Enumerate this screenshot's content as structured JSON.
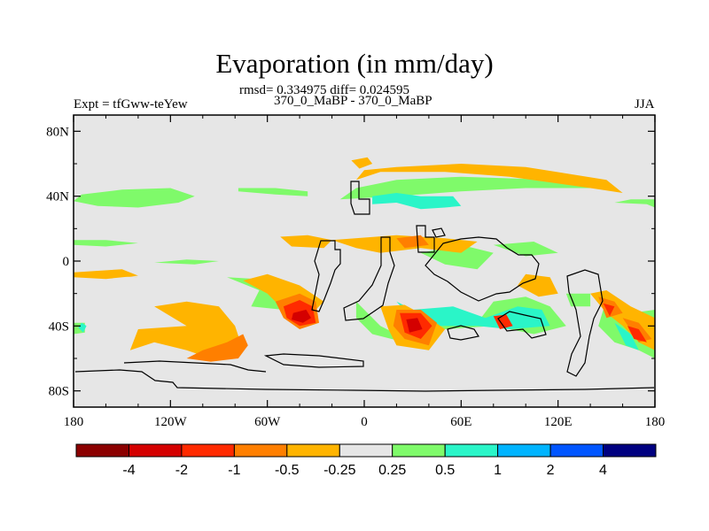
{
  "chart_data": {
    "type": "heatmap",
    "title": "Evaporation (in mm/day)",
    "stats_line": "rmsd= 0.334975 diff= 0.024595",
    "left_label": "Expt = tfGww-teYew",
    "center_label": "370_0_MaBP - 370_0_MaBP",
    "right_label": "JJA",
    "x_ticks": [
      "180",
      "120W",
      "60W",
      "0",
      "60E",
      "120E",
      "180"
    ],
    "x_tick_values": [
      -180,
      -120,
      -60,
      0,
      60,
      120,
      180
    ],
    "y_ticks": [
      "80N",
      "40N",
      "0",
      "40S",
      "80S"
    ],
    "y_tick_values": [
      80,
      40,
      0,
      -40,
      -80
    ],
    "xlim": [
      -180,
      180
    ],
    "ylim": [
      -90,
      90
    ],
    "colorbar": {
      "labels": [
        "-4",
        "-2",
        "-1",
        "-0.5",
        "-0.25",
        "0.25",
        "0.5",
        "1",
        "2",
        "4"
      ],
      "colors": [
        "#8b0000",
        "#d40000",
        "#ff2a00",
        "#ff7f00",
        "#ffb400",
        "#e6e6e6",
        "#7ffa6a",
        "#2af5c8",
        "#00b4ff",
        "#0055ff",
        "#000080"
      ]
    },
    "background_color": "#e6e6e6",
    "regions": [
      {
        "level": "0.25",
        "points": [
          [
            -180,
            37
          ],
          [
            -165,
            34
          ],
          [
            -140,
            33
          ],
          [
            -115,
            36
          ],
          [
            -105,
            40
          ],
          [
            -120,
            45
          ],
          [
            -150,
            44
          ],
          [
            -175,
            41
          ]
        ]
      },
      {
        "level": "0.25",
        "points": [
          [
            -78,
            43
          ],
          [
            -55,
            41
          ],
          [
            -35,
            40
          ],
          [
            -35,
            43
          ],
          [
            -55,
            45
          ],
          [
            -78,
            45
          ]
        ]
      },
      {
        "level": "0.25",
        "points": [
          [
            -15,
            38
          ],
          [
            20,
            40
          ],
          [
            60,
            43
          ],
          [
            100,
            45
          ],
          [
            150,
            45
          ],
          [
            120,
            50
          ],
          [
            60,
            52
          ],
          [
            20,
            50
          ],
          [
            -5,
            45
          ]
        ]
      },
      {
        "level": "0.25",
        "points": [
          [
            155,
            36
          ],
          [
            175,
            35
          ],
          [
            180,
            33
          ],
          [
            180,
            38
          ],
          [
            165,
            38
          ]
        ]
      },
      {
        "level": "0.25",
        "points": [
          [
            -180,
            10
          ],
          [
            -160,
            9
          ],
          [
            -140,
            11
          ],
          [
            -160,
            13
          ],
          [
            -180,
            13
          ]
        ]
      },
      {
        "level": "0.25",
        "points": [
          [
            -130,
            -1
          ],
          [
            -105,
            -2
          ],
          [
            -90,
            0
          ],
          [
            -110,
            1
          ]
        ]
      },
      {
        "level": "0.25",
        "points": [
          [
            -85,
            -10
          ],
          [
            -50,
            -12
          ],
          [
            -35,
            -20
          ],
          [
            -50,
            -30
          ],
          [
            -70,
            -28
          ],
          [
            -65,
            -18
          ]
        ]
      },
      {
        "level": "0.25",
        "points": [
          [
            -5,
            -25
          ],
          [
            10,
            -40
          ],
          [
            20,
            -45
          ],
          [
            35,
            -40
          ],
          [
            50,
            -35
          ],
          [
            70,
            -38
          ],
          [
            80,
            -25
          ],
          [
            100,
            -22
          ],
          [
            115,
            -28
          ],
          [
            125,
            -40
          ],
          [
            105,
            -45
          ],
          [
            80,
            -40
          ],
          [
            50,
            -42
          ],
          [
            25,
            -50
          ],
          [
            5,
            -45
          ],
          [
            -5,
            -35
          ]
        ]
      },
      {
        "level": "0.25",
        "points": [
          [
            80,
            10
          ],
          [
            105,
            12
          ],
          [
            120,
            5
          ],
          [
            100,
            3
          ]
        ]
      },
      {
        "level": "0.25",
        "points": [
          [
            35,
            5
          ],
          [
            60,
            10
          ],
          [
            80,
            5
          ],
          [
            70,
            -5
          ],
          [
            50,
            -2
          ]
        ]
      },
      {
        "level": "0.25",
        "points": [
          [
            125,
            -20
          ],
          [
            140,
            -20
          ],
          [
            140,
            -28
          ],
          [
            128,
            -28
          ]
        ]
      },
      {
        "level": "0.25",
        "points": [
          [
            148,
            -30
          ],
          [
            165,
            -32
          ],
          [
            180,
            -30
          ],
          [
            180,
            -60
          ],
          [
            170,
            -55
          ],
          [
            155,
            -50
          ],
          [
            145,
            -40
          ]
        ]
      },
      {
        "level": "0.25",
        "points": [
          [
            -180,
            -38
          ],
          [
            -173,
            -38
          ],
          [
            -173,
            -44
          ],
          [
            -180,
            -45
          ]
        ]
      },
      {
        "level": "0.5",
        "points": [
          [
            5,
            35
          ],
          [
            20,
            36
          ],
          [
            35,
            32
          ],
          [
            50,
            33
          ],
          [
            60,
            34
          ],
          [
            55,
            40
          ],
          [
            35,
            40
          ],
          [
            20,
            42
          ],
          [
            5,
            40
          ]
        ]
      },
      {
        "level": "0.5",
        "points": [
          [
            20,
            -25
          ],
          [
            30,
            -30
          ],
          [
            55,
            -28
          ],
          [
            75,
            -35
          ],
          [
            95,
            -28
          ],
          [
            110,
            -30
          ],
          [
            115,
            -40
          ],
          [
            90,
            -42
          ],
          [
            70,
            -40
          ],
          [
            45,
            -40
          ],
          [
            30,
            -36
          ]
        ]
      },
      {
        "level": "0.5",
        "points": [
          [
            -175,
            -38
          ],
          [
            -172,
            -40
          ],
          [
            -174,
            -44
          ],
          [
            -177,
            -41
          ]
        ]
      },
      {
        "level": "0.5",
        "points": [
          [
            155,
            -38
          ],
          [
            165,
            -45
          ],
          [
            170,
            -55
          ],
          [
            162,
            -52
          ]
        ]
      },
      {
        "level": "-0.25",
        "points": [
          [
            -180,
            -8
          ],
          [
            -160,
            -8
          ],
          [
            -140,
            -10
          ],
          0
        ]
      },
      {
        "level": "-0.25",
        "points": [
          [
            -180,
            -7
          ],
          [
            -150,
            -5
          ],
          [
            -140,
            -9
          ],
          [
            -160,
            -11
          ],
          [
            -180,
            -10
          ]
        ]
      },
      {
        "level": "-0.25",
        "points": [
          [
            -130,
            -28
          ],
          [
            -110,
            -25
          ],
          [
            -90,
            -28
          ],
          [
            -80,
            -40
          ],
          [
            -75,
            -55
          ],
          [
            -80,
            -60
          ],
          [
            -95,
            -60
          ],
          [
            -110,
            -55
          ],
          [
            -130,
            -50
          ],
          [
            -145,
            -55
          ],
          [
            -140,
            -42
          ],
          [
            -110,
            -40
          ],
          [
            -120,
            -34
          ]
        ]
      },
      {
        "level": "-0.25",
        "points": [
          [
            -5,
            50
          ],
          [
            10,
            55
          ],
          [
            50,
            55
          ],
          [
            90,
            52
          ],
          [
            140,
            45
          ],
          [
            160,
            42
          ],
          [
            150,
            50
          ],
          [
            100,
            58
          ],
          [
            60,
            60
          ],
          [
            20,
            58
          ],
          [
            0,
            56
          ]
        ]
      },
      {
        "level": "-0.25",
        "points": [
          [
            -52,
            15
          ],
          [
            -35,
            16
          ],
          [
            -20,
            13
          ],
          [
            -25,
            8
          ],
          [
            -45,
            9
          ]
        ]
      },
      {
        "level": "-0.25",
        "points": [
          [
            -20,
            13
          ],
          [
            20,
            16
          ],
          [
            50,
            14
          ],
          [
            70,
            12
          ],
          [
            60,
            5
          ],
          [
            35,
            8
          ],
          [
            10,
            5
          ],
          [
            -5,
            8
          ]
        ]
      },
      {
        "level": "-0.25",
        "points": [
          [
            -8,
            62
          ],
          [
            2,
            64
          ],
          [
            5,
            60
          ],
          [
            -3,
            57
          ]
        ]
      },
      {
        "level": "-0.25",
        "points": [
          [
            -75,
            -12
          ],
          [
            -60,
            -8
          ],
          [
            -40,
            -15
          ],
          [
            -25,
            -25
          ],
          [
            -35,
            -35
          ],
          [
            -50,
            -30
          ],
          [
            -60,
            -20
          ]
        ]
      },
      {
        "level": "-0.25",
        "points": [
          [
            10,
            -28
          ],
          [
            25,
            -27
          ],
          [
            40,
            -35
          ],
          [
            50,
            -42
          ],
          [
            40,
            -55
          ],
          [
            20,
            -52
          ],
          [
            15,
            -42
          ]
        ]
      },
      {
        "level": "-0.25",
        "points": [
          [
            95,
            -15
          ],
          [
            100,
            -8
          ],
          [
            115,
            -10
          ],
          [
            120,
            -20
          ],
          [
            108,
            -22
          ]
        ]
      },
      {
        "level": "-0.25",
        "points": [
          [
            140,
            -20
          ],
          [
            150,
            -18
          ],
          [
            165,
            -28
          ],
          [
            180,
            -35
          ],
          [
            180,
            -55
          ],
          [
            170,
            -50
          ],
          [
            160,
            -40
          ],
          [
            150,
            -32
          ]
        ]
      },
      {
        "level": "-0.5",
        "points": [
          [
            -85,
            -50
          ],
          [
            -75,
            -45
          ],
          [
            -72,
            -52
          ],
          [
            -78,
            -60
          ],
          [
            -95,
            -62
          ],
          [
            -110,
            -60
          ],
          [
            -100,
            -55
          ]
        ]
      },
      {
        "level": "-0.5",
        "points": [
          [
            -55,
            -25
          ],
          [
            -40,
            -20
          ],
          [
            -30,
            -25
          ],
          [
            -28,
            -38
          ],
          [
            -40,
            -42
          ],
          [
            -50,
            -35
          ]
        ]
      },
      {
        "level": "-0.5",
        "points": [
          [
            20,
            -30
          ],
          [
            35,
            -30
          ],
          [
            45,
            -38
          ],
          [
            40,
            -52
          ],
          [
            25,
            -48
          ],
          [
            18,
            -40
          ]
        ]
      },
      {
        "level": "-0.5",
        "points": [
          [
            145,
            -22
          ],
          [
            155,
            -25
          ],
          [
            160,
            -32
          ],
          [
            150,
            -35
          ]
        ]
      },
      {
        "level": "-0.5",
        "points": [
          [
            160,
            -35
          ],
          [
            170,
            -38
          ],
          [
            178,
            -48
          ],
          [
            170,
            -50
          ]
        ]
      },
      {
        "level": "-0.5",
        "points": [
          [
            20,
            14
          ],
          [
            35,
            16
          ],
          [
            40,
            10
          ],
          [
            25,
            8
          ]
        ]
      },
      {
        "level": "-1",
        "points": [
          [
            -50,
            -28
          ],
          [
            -40,
            -24
          ],
          [
            -32,
            -28
          ],
          [
            -30,
            -38
          ],
          [
            -40,
            -40
          ],
          [
            -48,
            -35
          ]
        ]
      },
      {
        "level": "-1",
        "points": [
          [
            22,
            -32
          ],
          [
            35,
            -32
          ],
          [
            42,
            -40
          ],
          [
            35,
            -48
          ],
          [
            25,
            -44
          ]
        ]
      },
      {
        "level": "-1",
        "points": [
          [
            80,
            -34
          ],
          [
            88,
            -33
          ],
          [
            92,
            -40
          ],
          [
            84,
            -42
          ]
        ]
      },
      {
        "level": "-1",
        "points": [
          [
            148,
            -26
          ],
          [
            155,
            -28
          ],
          [
            152,
            -34
          ]
        ]
      },
      {
        "level": "-1",
        "points": [
          [
            163,
            -40
          ],
          [
            170,
            -42
          ],
          [
            175,
            -50
          ],
          [
            167,
            -48
          ]
        ]
      },
      {
        "level": "-2",
        "points": [
          [
            -44,
            -32
          ],
          [
            -36,
            -30
          ],
          [
            -33,
            -35
          ],
          0
        ]
      },
      {
        "level": "-2",
        "points": [
          [
            -44,
            -32
          ],
          [
            -36,
            -30
          ],
          [
            -33,
            -35
          ],
          [
            -38,
            -38
          ],
          [
            -45,
            -36
          ]
        ]
      },
      {
        "level": "-2",
        "points": [
          [
            26,
            -36
          ],
          [
            33,
            -35
          ],
          [
            36,
            -42
          ],
          [
            28,
            -44
          ]
        ]
      }
    ]
  }
}
